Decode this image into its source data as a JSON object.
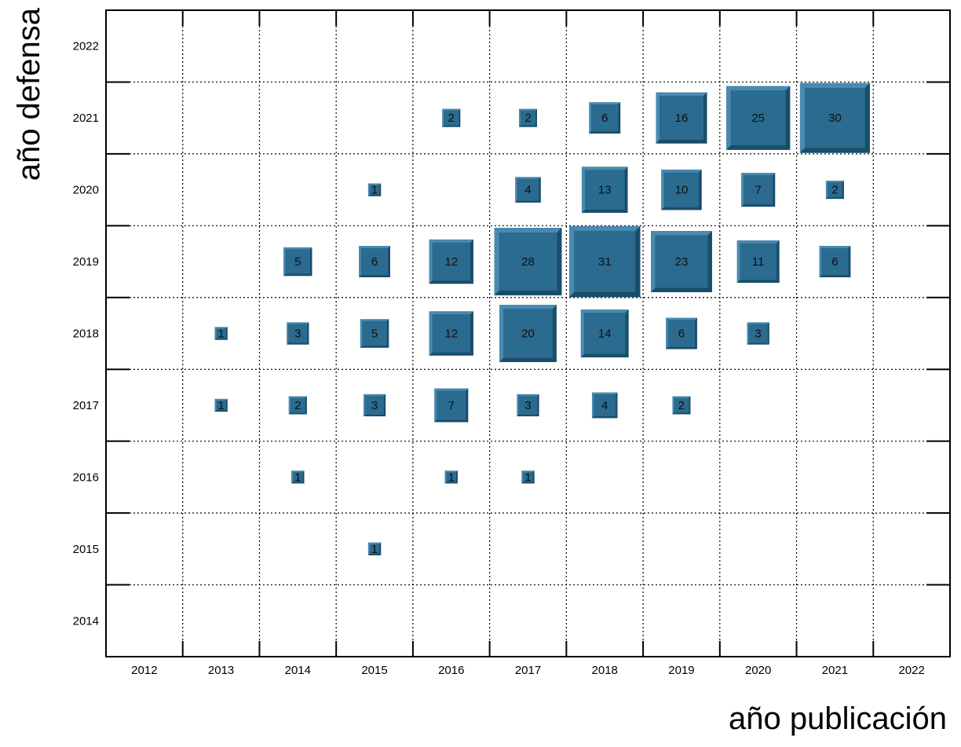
{
  "chart_data": {
    "type": "heatmap",
    "xlabel": "año publicación",
    "ylabel": "año defensa",
    "x_categories": [
      "2012",
      "2013",
      "2014",
      "2015",
      "2016",
      "2017",
      "2018",
      "2019",
      "2020",
      "2021",
      "2022"
    ],
    "y_categories": [
      "2014",
      "2015",
      "2016",
      "2017",
      "2018",
      "2019",
      "2020",
      "2021",
      "2022"
    ],
    "grid": true,
    "box_color": "#2a6b8f",
    "box_dark_color": "#1a4d6a",
    "box_light_color": "#4a8ab0",
    "cells": [
      {
        "x": "2016",
        "y": "2021",
        "value": 2
      },
      {
        "x": "2017",
        "y": "2021",
        "value": 2
      },
      {
        "x": "2018",
        "y": "2021",
        "value": 6
      },
      {
        "x": "2019",
        "y": "2021",
        "value": 16
      },
      {
        "x": "2020",
        "y": "2021",
        "value": 25
      },
      {
        "x": "2021",
        "y": "2021",
        "value": 30
      },
      {
        "x": "2015",
        "y": "2020",
        "value": 1
      },
      {
        "x": "2017",
        "y": "2020",
        "value": 4
      },
      {
        "x": "2018",
        "y": "2020",
        "value": 13
      },
      {
        "x": "2019",
        "y": "2020",
        "value": 10
      },
      {
        "x": "2020",
        "y": "2020",
        "value": 7
      },
      {
        "x": "2021",
        "y": "2020",
        "value": 2
      },
      {
        "x": "2014",
        "y": "2019",
        "value": 5
      },
      {
        "x": "2015",
        "y": "2019",
        "value": 6
      },
      {
        "x": "2016",
        "y": "2019",
        "value": 12
      },
      {
        "x": "2017",
        "y": "2019",
        "value": 28
      },
      {
        "x": "2018",
        "y": "2019",
        "value": 31
      },
      {
        "x": "2019",
        "y": "2019",
        "value": 23
      },
      {
        "x": "2020",
        "y": "2019",
        "value": 11
      },
      {
        "x": "2021",
        "y": "2019",
        "value": 6
      },
      {
        "x": "2013",
        "y": "2018",
        "value": 1
      },
      {
        "x": "2014",
        "y": "2018",
        "value": 3
      },
      {
        "x": "2015",
        "y": "2018",
        "value": 5
      },
      {
        "x": "2016",
        "y": "2018",
        "value": 12
      },
      {
        "x": "2017",
        "y": "2018",
        "value": 20
      },
      {
        "x": "2018",
        "y": "2018",
        "value": 14
      },
      {
        "x": "2019",
        "y": "2018",
        "value": 6
      },
      {
        "x": "2020",
        "y": "2018",
        "value": 3
      },
      {
        "x": "2013",
        "y": "2017",
        "value": 1
      },
      {
        "x": "2014",
        "y": "2017",
        "value": 2
      },
      {
        "x": "2015",
        "y": "2017",
        "value": 3
      },
      {
        "x": "2016",
        "y": "2017",
        "value": 7
      },
      {
        "x": "2017",
        "y": "2017",
        "value": 3
      },
      {
        "x": "2018",
        "y": "2017",
        "value": 4
      },
      {
        "x": "2019",
        "y": "2017",
        "value": 2
      },
      {
        "x": "2014",
        "y": "2016",
        "value": 1
      },
      {
        "x": "2016",
        "y": "2016",
        "value": 1
      },
      {
        "x": "2017",
        "y": "2016",
        "value": 1
      },
      {
        "x": "2015",
        "y": "2015",
        "value": 1
      }
    ]
  }
}
